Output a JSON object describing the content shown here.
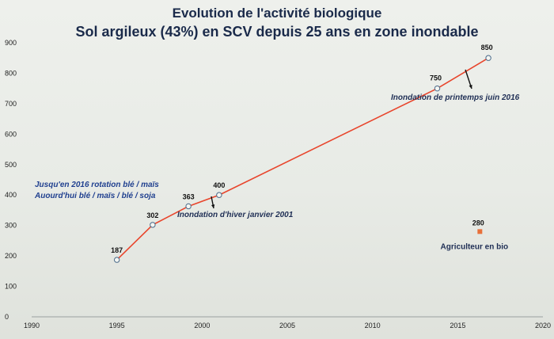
{
  "chart_data": {
    "type": "line",
    "title": "Evolution de l'activité biologique",
    "subtitle": "Sol argileux (43%) en SCV depuis 25 ans en zone inondable",
    "xlabel": "",
    "ylabel": "",
    "xlim": [
      1990,
      2020
    ],
    "ylim": [
      0,
      900
    ],
    "x_ticks": [
      1990,
      1995,
      2000,
      2005,
      2010,
      2015,
      2020
    ],
    "y_ticks": [
      0,
      100,
      200,
      300,
      400,
      500,
      600,
      700,
      800,
      900
    ],
    "grid": false,
    "series": [
      {
        "color": "#e8452c",
        "x": [
          1995,
          1997.1,
          1999.2,
          2001,
          2013.8,
          2016.8
        ],
        "y": [
          187,
          302,
          363,
          400,
          750,
          850
        ],
        "labels": [
          "187",
          "302",
          "363",
          "400",
          "750",
          "850"
        ]
      },
      {
        "name": "Agriculteur en bio",
        "color": "#e8703a",
        "x": [
          2016.3
        ],
        "y": [
          280
        ],
        "labels": [
          "280"
        ]
      }
    ],
    "annotations": [
      {
        "text": "Jusqu'en 2016 rotation blé / maïs",
        "style": "blue"
      },
      {
        "text": "Auourd'hui blé / maïs / blé / soja",
        "style": "blue"
      },
      {
        "text": "Inondation d'hiver janvier 2001",
        "style": "dark"
      },
      {
        "text": "Inondation de printemps juin 2016",
        "style": "dark"
      }
    ]
  }
}
